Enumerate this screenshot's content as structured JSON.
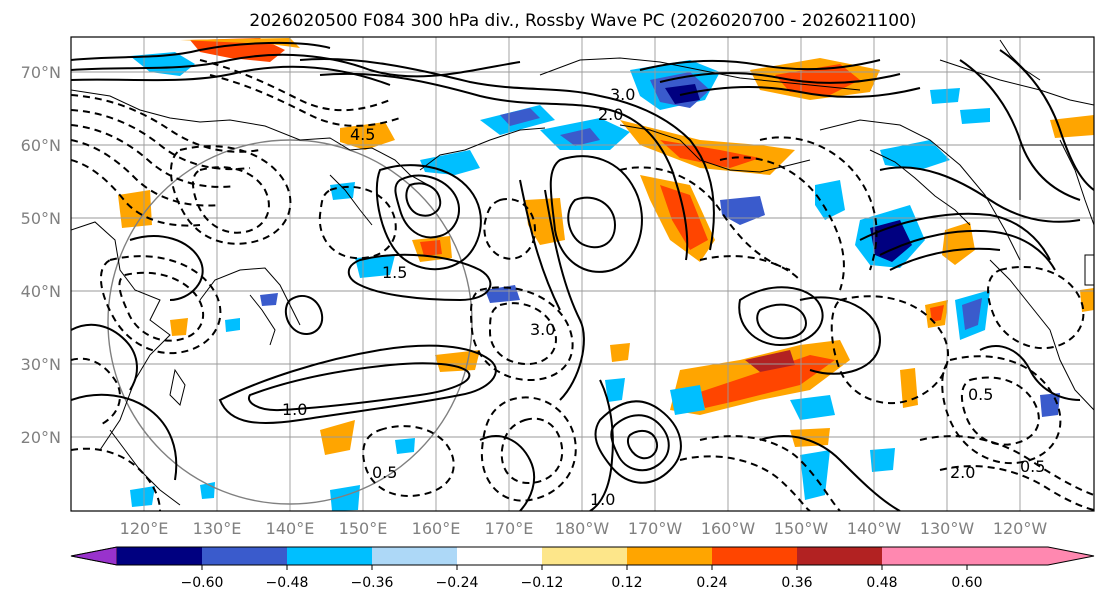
{
  "title": "2026020500 F084 300 hPa div., Rossby Wave PC (2026020700 - 2026021100)",
  "lat_labels": [
    "20°N",
    "30°N",
    "40°N",
    "50°N",
    "60°N",
    "70°N"
  ],
  "lon_labels": [
    "120°E",
    "130°E",
    "140°E",
    "150°E",
    "160°E",
    "170°E",
    "180°W",
    "170°W",
    "160°W",
    "150°W",
    "140°W",
    "130°W",
    "120°W"
  ],
  "colorbar": {
    "colors": [
      "#9932cc",
      "#000080",
      "#3a5bcc",
      "#00bfff",
      "#add8f7",
      "#ffffff",
      "#fde68a",
      "#ffa500",
      "#ff4500",
      "#b22222",
      "#ff88b0"
    ],
    "tick_labels": [
      "−0.60",
      "−0.48",
      "−0.36",
      "−0.24",
      "−0.12",
      "0.12",
      "0.24",
      "0.36",
      "0.48",
      "0.60"
    ]
  },
  "contour_labels": [
    {
      "text": "0.5",
      "kind": "solid"
    },
    {
      "text": "1.0",
      "kind": "solid"
    },
    {
      "text": "3.0",
      "kind": "solid"
    },
    {
      "text": "4.5",
      "kind": "solid"
    },
    {
      "text": "1.5",
      "kind": "solid"
    },
    {
      "text": "2.0",
      "kind": "solid"
    },
    {
      "text": "0.5",
      "kind": "dash"
    },
    {
      "text": "3.0",
      "kind": "dash"
    },
    {
      "text": "1.0",
      "kind": "dash"
    },
    {
      "text": "2.0",
      "kind": "dash"
    },
    {
      "text": "0.5",
      "kind": "dash"
    }
  ],
  "palette": {
    "ticklabel": "#808080",
    "grid": "#9a9a9a",
    "circle": "#808080"
  }
}
